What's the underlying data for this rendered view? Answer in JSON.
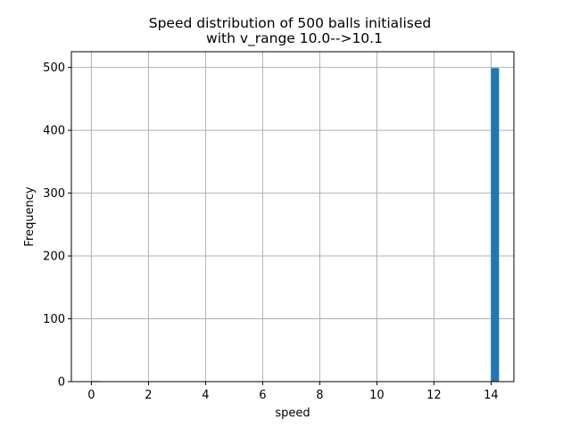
{
  "chart_data": {
    "type": "bar",
    "title": "Speed distribution of 500 balls initialised",
    "subtitle": "with v_range 10.0-->10.1",
    "xlabel": "speed",
    "ylabel": "Frequency",
    "xlim": [
      -0.7,
      14.8
    ],
    "ylim": [
      0,
      525
    ],
    "xticks": [
      0,
      2,
      4,
      6,
      8,
      10,
      12,
      14
    ],
    "yticks": [
      0,
      100,
      200,
      300,
      400,
      500
    ],
    "grid": true,
    "bar_color": "#1f77b4",
    "bins": [
      {
        "x0": 0.0,
        "x1": 0.28,
        "count": 1
      },
      {
        "x0": 14.0,
        "x1": 14.28,
        "count": 499
      }
    ]
  }
}
